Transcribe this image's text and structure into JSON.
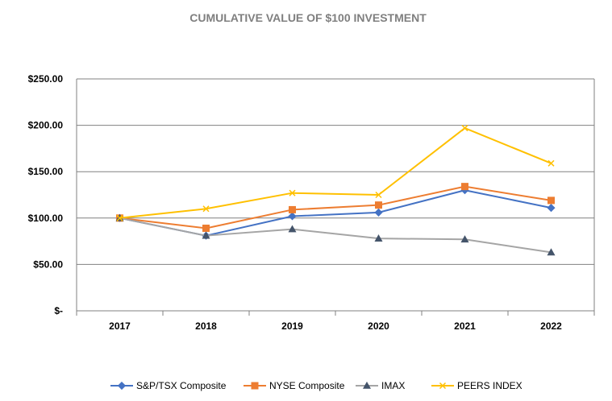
{
  "chart_data": {
    "type": "line",
    "title": "CUMULATIVE VALUE OF $100 INVESTMENT",
    "xlabel": "",
    "ylabel": "",
    "categories": [
      "2017",
      "2018",
      "2019",
      "2020",
      "2021",
      "2022"
    ],
    "ylim": [
      0,
      250
    ],
    "yticks": [
      0,
      50,
      100,
      150,
      200,
      250
    ],
    "ytick_labels": [
      "$-",
      "$50.00",
      "$100.00",
      "$150.00",
      "$200.00",
      "$250.00"
    ],
    "grid": true,
    "legend_position": "bottom",
    "series": [
      {
        "name": "S&P/TSX Composite",
        "color": "#4472c4",
        "marker": "diamond",
        "values": [
          100,
          81,
          102,
          106,
          130,
          111
        ]
      },
      {
        "name": "NYSE Composite",
        "color": "#ed7d31",
        "marker": "square",
        "values": [
          100,
          89,
          109,
          114,
          134,
          119
        ]
      },
      {
        "name": "IMAX",
        "color": "#a5a5a5",
        "marker": "triangle",
        "values": [
          100,
          81,
          88,
          78,
          77,
          63
        ]
      },
      {
        "name": "PEERS INDEX",
        "color": "#ffc000",
        "marker": "x",
        "values": [
          100,
          110,
          127,
          125,
          197,
          159
        ]
      }
    ]
  }
}
